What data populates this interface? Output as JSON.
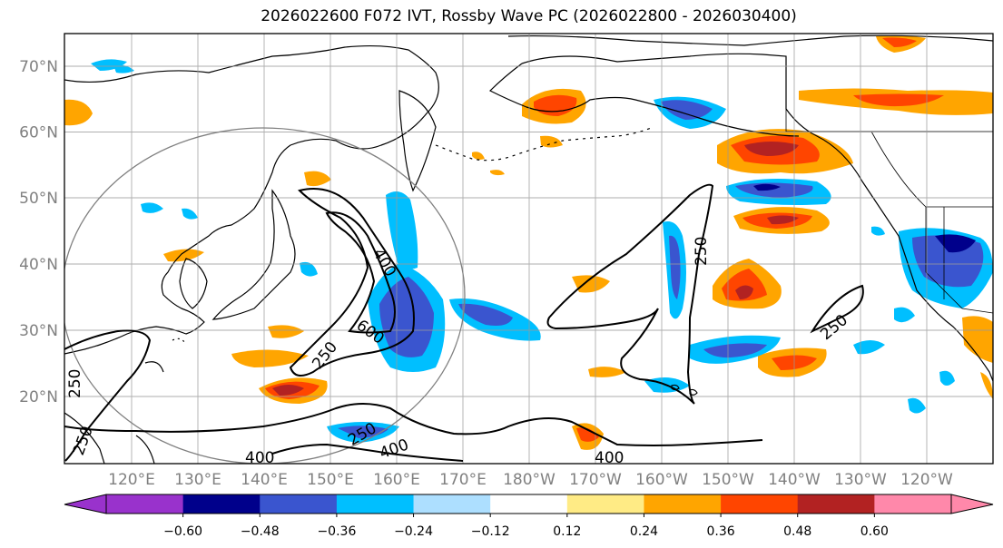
{
  "title": "2026022600 F072 IVT, Rossby Wave PC (2026022800 - 2026030400)",
  "lat_labels": [
    "70°N",
    "60°N",
    "50°N",
    "40°N",
    "30°N",
    "20°N"
  ],
  "lon_labels": [
    "120°E",
    "130°E",
    "140°E",
    "150°E",
    "160°E",
    "170°E",
    "180°W",
    "170°W",
    "160°W",
    "150°W",
    "140°W",
    "130°W",
    "120°W"
  ],
  "contour_labels": [
    "400",
    "250",
    "600",
    "250",
    "250",
    "400",
    "250",
    "400",
    "250",
    "400",
    "250"
  ],
  "colorbar": {
    "ticks": [
      "−0.60",
      "−0.48",
      "−0.36",
      "−0.24",
      "−0.12",
      "0.12",
      "0.24",
      "0.36",
      "0.48",
      "0.60"
    ],
    "colors": {
      "under": "#9932CC",
      "bins": [
        "#00008B",
        "#3A55CF",
        "#00BFFF",
        "#ADDFFF",
        "#FFFFFF",
        "#FFEB85",
        "#FFA500",
        "#FF4500",
        "#B22222"
      ],
      "over": "#FF88AA"
    }
  }
}
